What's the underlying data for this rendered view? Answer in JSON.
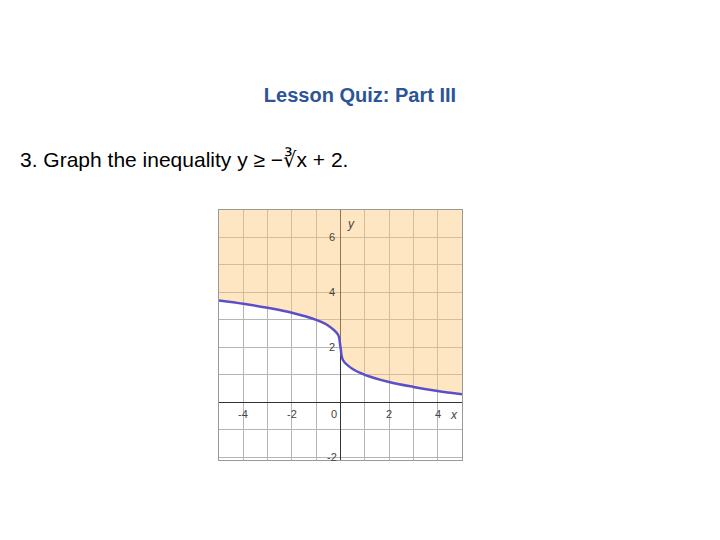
{
  "header": {
    "title": "Lesson Quiz: Part III",
    "question": "3. Graph the inequality y ≥ −∛x + 2."
  },
  "chart_data": {
    "type": "area",
    "x": [
      -5,
      -4,
      -3,
      -2,
      -1,
      -0.5,
      -0.1,
      0,
      0.1,
      0.5,
      1,
      2,
      3,
      4,
      5
    ],
    "values": [
      3.71,
      3.59,
      3.44,
      3.26,
      3.0,
      2.79,
      2.46,
      2.0,
      1.54,
      1.21,
      1.0,
      0.74,
      0.56,
      0.41,
      0.29
    ],
    "xlim": [
      -5,
      5
    ],
    "ylim": [
      -2.1,
      7
    ],
    "xticks": [
      -4,
      -2,
      0,
      2,
      4
    ],
    "yticks": [
      -2,
      2,
      4,
      6
    ],
    "x_label": "x",
    "y_label": "y",
    "grid": true,
    "color": "#5b4fc9"
  }
}
